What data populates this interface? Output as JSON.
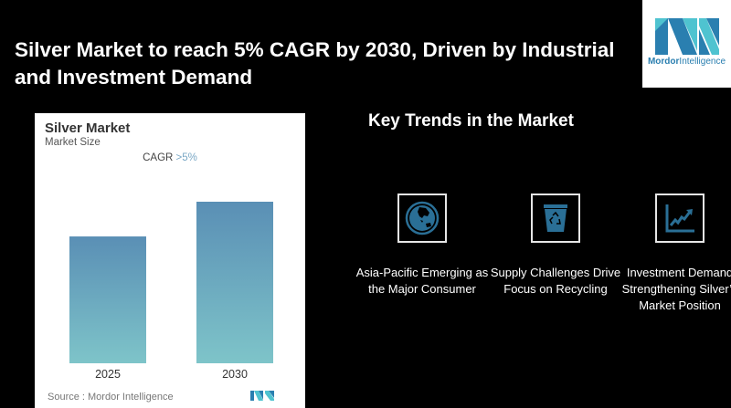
{
  "headline": "Silver Market to reach 5% CAGR by 2030, Driven by Industrial and Investment Demand",
  "logo": {
    "brand_bold": "Mordor",
    "brand_rest": "Intelligence",
    "icon": "mordor-intelligence-logo-icon"
  },
  "card": {
    "title": "Silver Market",
    "subtitle": "Market Size",
    "cagr_label": "CAGR",
    "cagr_value": ">5%",
    "source": "Source :  Mordor Intelligence"
  },
  "chart_data": {
    "type": "bar",
    "title": "Silver Market",
    "subtitle": "Market Size",
    "annotation": "CAGR >5%",
    "categories": [
      "2025",
      "2030"
    ],
    "values": [
      0.785,
      1.0
    ],
    "value_note": "relative bar heights; no axis or values shown",
    "xlabel": "",
    "ylabel": "",
    "grid": false,
    "colors": {
      "bar_top": "#5a8fb5",
      "bar_bottom": "#7ec4c9"
    }
  },
  "trends": {
    "title": "Key Trends in the Market",
    "items": [
      {
        "icon": "globe-icon",
        "label": "Asia-Pacific Emerging as the Major Consumer"
      },
      {
        "icon": "recycle-bin-icon",
        "label": "Supply Challenges Drive Focus on Recycling"
      },
      {
        "icon": "trend-chart-icon",
        "label": "Investment Demand Strengthening Silver’s Market Position"
      }
    ]
  },
  "colors": {
    "background": "#000000",
    "icon_blue": "#2a6f96",
    "accent": "#7aa8c6"
  }
}
